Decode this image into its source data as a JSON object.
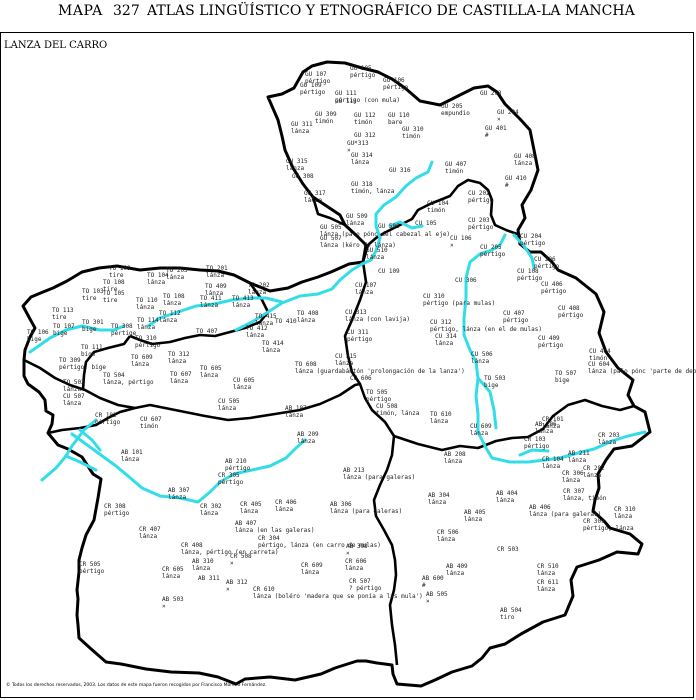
{
  "header": {
    "mapa": "MAPA",
    "number": "327",
    "title": "ATLAS LINGÜÍSTICO Y ETNOGRÁFICO DE CASTILLA-LA MANCHA"
  },
  "region_label": "LANZA DEL CARRO",
  "footer": "© Todos los derechos reservados, 2003. Los datos de este mapa fueron recogidos por Francisco Moreno Fernández.",
  "colors": {
    "border": "#000000",
    "river": "#33dde8"
  },
  "points": [
    {
      "code": "GU 107",
      "word": "pértigo"
    },
    {
      "code": "GU 105",
      "word": "pértigo"
    },
    {
      "code": "GU 106",
      "word": "pértigo"
    },
    {
      "code": "GU 109",
      "word": "pértigo"
    },
    {
      "code": "GU 111",
      "word": "pértigo (con mula)"
    },
    {
      "code": "GU 113",
      "word": ""
    },
    {
      "code": "GU 205",
      "word": "empundio"
    },
    {
      "code": "GU 203",
      "word": ""
    },
    {
      "code": "GU 204",
      "word": "×"
    },
    {
      "code": "GU 309",
      "word": "timón"
    },
    {
      "code": "GU 112",
      "word": "timón"
    },
    {
      "code": "GU 110",
      "word": "bare"
    },
    {
      "code": "GU 311",
      "word": "lánza"
    },
    {
      "code": "GU 312",
      "word": "×"
    },
    {
      "code": "GU 310",
      "word": "timón"
    },
    {
      "code": "GU 401",
      "word": "#"
    },
    {
      "code": "GU 313",
      "word": "×"
    },
    {
      "code": "GU 314",
      "word": "lánza"
    },
    {
      "code": "GU 408",
      "word": "lánza"
    },
    {
      "code": "GU 315",
      "word": "lánza"
    },
    {
      "code": "GU 308",
      "word": ""
    },
    {
      "code": "GU 316",
      "word": ""
    },
    {
      "code": "GU 407",
      "word": "timón"
    },
    {
      "code": "GU 410",
      "word": "#"
    },
    {
      "code": "GU 317",
      "word": "lánza"
    },
    {
      "code": "GU 318",
      "word": "timón, lánza"
    },
    {
      "code": "CU 202",
      "word": "pértigo"
    },
    {
      "code": "CU 104",
      "word": "timón"
    },
    {
      "code": "GU 509",
      "word": "lánza"
    },
    {
      "code": "GU 506",
      "word": ""
    },
    {
      "code": "GU 505",
      "word": "lánza (palo pónc del cabezal al eje)"
    },
    {
      "code": "CU 105",
      "word": ""
    },
    {
      "code": "CU 203",
      "word": "pértigo"
    },
    {
      "code": "GU 507",
      "word": "lánza (kéro do lánza)"
    },
    {
      "code": "CU 106",
      "word": "×"
    },
    {
      "code": "CU 204",
      "word": "pértigo"
    },
    {
      "code": "CU 205",
      "word": "pértigo"
    },
    {
      "code": "CU 206",
      "word": "pértigo"
    },
    {
      "code": "GU 510",
      "word": "lánza"
    },
    {
      "code": "CU 109",
      "word": ""
    },
    {
      "code": "CU 108",
      "word": "pértigo"
    },
    {
      "code": "TO 109",
      "word": "tire"
    },
    {
      "code": "TO 108",
      "word": "tire"
    },
    {
      "code": "TO 104",
      "word": "lánza"
    },
    {
      "code": "TO 203",
      "word": "lánza"
    },
    {
      "code": "TO 201",
      "word": "lánza"
    },
    {
      "code": "CU 107",
      "word": "lánza"
    },
    {
      "code": "CU 306",
      "word": ""
    },
    {
      "code": "CU 406",
      "word": "pértigo"
    },
    {
      "code": "TO 103",
      "word": "tire"
    },
    {
      "code": "TO 105",
      "word": "tire"
    },
    {
      "code": "TO 110",
      "word": "lánza"
    },
    {
      "code": "TO 108",
      "word": "lánza"
    },
    {
      "code": "TO 409",
      "word": "lánza"
    },
    {
      "code": "TO 411",
      "word": "lánza"
    },
    {
      "code": "TO 413",
      "word": "lánza"
    },
    {
      "code": "TO 202",
      "word": "lánza"
    },
    {
      "code": "CU 310",
      "word": "pértigo (para mulas)"
    },
    {
      "code": "TO 113",
      "word": "tire"
    },
    {
      "code": "TO 112",
      "word": "lánza"
    },
    {
      "code": "TO 415",
      "word": "lánza"
    },
    {
      "code": "TO 408",
      "word": "lánza"
    },
    {
      "code": "CU 313",
      "word": "lánza (con lavija)"
    },
    {
      "code": "CU 407",
      "word": "pértigo"
    },
    {
      "code": "CU 408",
      "word": "pértigo"
    },
    {
      "code": "TO 107",
      "word": "bige"
    },
    {
      "code": "TO 301",
      "word": "bige"
    },
    {
      "code": "TO 114",
      "word": "lánza"
    },
    {
      "code": "CU 312",
      "word": "pértigo, lánza (en el de mulas)"
    },
    {
      "code": "TO 106",
      "word": "bige"
    },
    {
      "code": "TO 308",
      "word": "pértige"
    },
    {
      "code": "TO 310",
      "word": "pértigo"
    },
    {
      "code": "TO 407",
      "word": ""
    },
    {
      "code": "TO 412",
      "word": "lánza"
    },
    {
      "code": "TO 410",
      "word": ""
    },
    {
      "code": "CU 311",
      "word": "pértigo"
    },
    {
      "code": "CU 314",
      "word": "lánza"
    },
    {
      "code": "CU 409",
      "word": "pértigo"
    },
    {
      "code": "TO 111",
      "word": "bige"
    },
    {
      "code": "TO 414",
      "word": "lánza"
    },
    {
      "code": "TO 312",
      "word": "lánza"
    },
    {
      "code": "CU 315",
      "word": "lánza"
    },
    {
      "code": "CU 506",
      "word": "lánza"
    },
    {
      "code": "CU 404",
      "word": "timón"
    },
    {
      "code": "TO 309",
      "word": "pértigo, bige"
    },
    {
      "code": "TO 605",
      "word": "lánza"
    },
    {
      "code": "TO 608",
      "word": "lánza (guardabántón 'prolongación de la lanza')"
    },
    {
      "code": "CU 606",
      "word": ""
    },
    {
      "code": "CU 604",
      "word": "lánza (palo pónc 'parte de debajo del carro')"
    },
    {
      "code": "TO 507",
      "word": "bige"
    },
    {
      "code": "TO 504",
      "word": "lánza, pértigo"
    },
    {
      "code": "TO 607",
      "word": "lánza"
    },
    {
      "code": "CU 605",
      "word": "lánza"
    },
    {
      "code": "TO 503",
      "word": "bige"
    },
    {
      "code": "TO 502",
      "word": "lánza"
    },
    {
      "code": "TO 609",
      "word": "lánza"
    },
    {
      "code": "CU 505",
      "word": "lánza"
    },
    {
      "code": "TO 505",
      "word": "pértigo"
    },
    {
      "code": "CU 507",
      "word": "lánza"
    },
    {
      "code": "CU 508",
      "word": "timón, lánza"
    },
    {
      "code": "TO 610",
      "word": "lánza"
    },
    {
      "code": "AB 107",
      "word": "lánza"
    },
    {
      "code": "CR 101",
      "word": "lánza"
    },
    {
      "code": "CR 102",
      "word": "pértigo"
    },
    {
      "code": "CU 607",
      "word": "timón"
    },
    {
      "code": "CU 609",
      "word": "lánza"
    },
    {
      "code": "AB 206",
      "word": "lánza"
    },
    {
      "code": "CR 203",
      "word": "lánza"
    },
    {
      "code": "AB 209",
      "word": "lánza"
    },
    {
      "code": "CR 103",
      "word": "pértigo"
    },
    {
      "code": "AB 101",
      "word": "lánza"
    },
    {
      "code": "AB 208",
      "word": "lánza"
    },
    {
      "code": "AB 211",
      "word": "lánza"
    },
    {
      "code": "CR 104",
      "word": "lánza"
    },
    {
      "code": "AB 210",
      "word": "pértigo"
    },
    {
      "code": "CR 202",
      "word": "lánza"
    },
    {
      "code": "AB 213",
      "word": "lánza (para galeras)"
    },
    {
      "code": "CR 306",
      "word": "lánza"
    },
    {
      "code": "CR 305",
      "word": "pértigo"
    },
    {
      "code": "AB 307",
      "word": "lánza"
    },
    {
      "code": "AB 304",
      "word": "lánza"
    },
    {
      "code": "AB 404",
      "word": "lánza"
    },
    {
      "code": "CR 307",
      "word": "lánza, timón"
    },
    {
      "code": "CR 308",
      "word": "pértigo"
    },
    {
      "code": "CR 302",
      "word": "lánza"
    },
    {
      "code": "CR 405",
      "word": "lánza"
    },
    {
      "code": "CR 406",
      "word": "lánza"
    },
    {
      "code": "AB 306",
      "word": "lánza (para galeras)"
    },
    {
      "code": "AB 405",
      "word": "lánza"
    },
    {
      "code": "AB 406",
      "word": "lánza (para galeras)"
    },
    {
      "code": "CR 310",
      "word": "lánza"
    },
    {
      "code": "AB 407",
      "word": "lánza (en las galeras)"
    },
    {
      "code": "CR 309",
      "word": "pértigo, lánza"
    },
    {
      "code": "CR 407",
      "word": "lánza"
    },
    {
      "code": "CR 304",
      "word": "pértigo, lánza (en carro de mulas)"
    },
    {
      "code": "CR 408",
      "word": "lánza, pértigo (en carreta)"
    },
    {
      "code": "AB 308",
      "word": "×"
    },
    {
      "code": "CR 506",
      "word": "lánza"
    },
    {
      "code": "CR 508",
      "word": "×"
    },
    {
      "code": "CR 606",
      "word": "lánza"
    },
    {
      "code": "AB 310",
      "word": "lánza"
    },
    {
      "code": "CR 503",
      "word": ""
    },
    {
      "code": "CR 505",
      "word": "pértigo"
    },
    {
      "code": "CR 605",
      "word": "lánza"
    },
    {
      "code": "CR 609",
      "word": "lánza"
    },
    {
      "code": "AB 312",
      "word": "×"
    },
    {
      "code": "AB 409",
      "word": "lánza"
    },
    {
      "code": "CR 510",
      "word": "lánza"
    },
    {
      "code": "AB 311",
      "word": ""
    },
    {
      "code": "AB 600",
      "word": "#"
    },
    {
      "code": "CR 611",
      "word": "lánza"
    },
    {
      "code": "CR 610",
      "word": "lánza (boléro 'madera que se ponía a las mula')"
    },
    {
      "code": "CR 507",
      "word": "? pértigo"
    },
    {
      "code": "AB 503",
      "word": "×"
    },
    {
      "code": "AB 505",
      "word": "×"
    },
    {
      "code": "AB 504",
      "word": "tiro"
    }
  ]
}
